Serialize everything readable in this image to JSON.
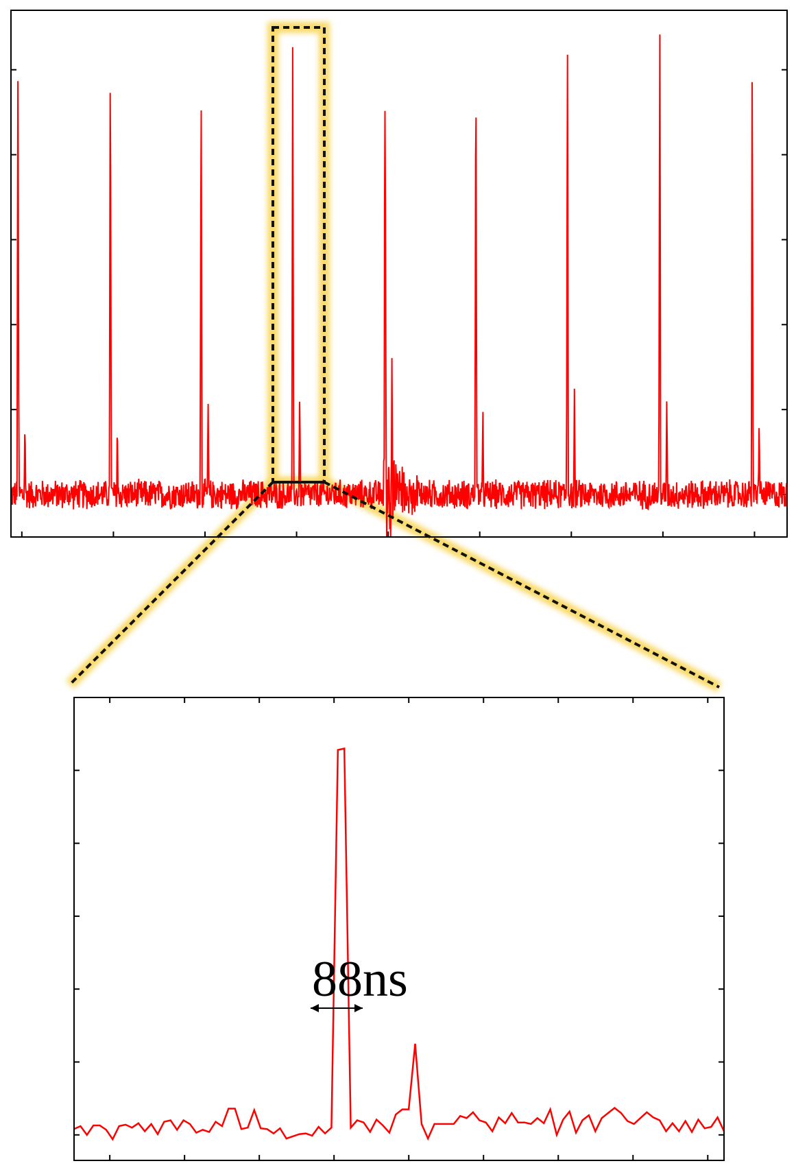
{
  "colors": {
    "trace": "#ff0000",
    "frame": "#000000",
    "zoom_box": "#111111",
    "glow": "#f5c518"
  },
  "annotation": {
    "label": "88ns"
  },
  "chart_data": [
    {
      "type": "line",
      "title": "",
      "xlabel": "",
      "ylabel": "",
      "xlim": [
        0,
        1000
      ],
      "ylim": [
        -0.5,
        5.7
      ],
      "grid": false,
      "series": [
        {
          "baseline": 0,
          "noise_amplitude": 0.12,
          "pulses": [
            {
              "x": 9,
              "main": 5.3,
              "echo": 0.9
            },
            {
              "x": 128,
              "main": 5.35,
              "echo": 0.9
            },
            {
              "x": 245,
              "main": 5.05,
              "echo": 1.1
            },
            {
              "x": 363,
              "main": 5.35,
              "echo": 1.25
            },
            {
              "x": 482,
              "main": 5.2,
              "echo": 1.6
            },
            {
              "x": 599,
              "main": 5.35,
              "echo": 1.1
            },
            {
              "x": 717,
              "main": 5.45,
              "echo": 1.3
            },
            {
              "x": 836,
              "main": 5.5,
              "echo": 1.2
            },
            {
              "x": 955,
              "main": 4.95,
              "echo": 0.9
            }
          ]
        }
      ]
    },
    {
      "type": "line",
      "title": "",
      "xlabel": "",
      "ylabel": "",
      "xlim": [
        0,
        100
      ],
      "ylim": [
        -0.35,
        6.0
      ],
      "grid": false,
      "series": [
        {
          "values": [
            0.08,
            0.12,
            0.0,
            0.13,
            0.13,
            0.07,
            -0.06,
            0.12,
            0.14,
            0.1,
            0.16,
            0.05,
            0.15,
            0.01,
            0.18,
            0.2,
            0.07,
            0.2,
            0.15,
            0.03,
            0.07,
            0.04,
            0.18,
            0.12,
            0.36,
            0.36,
            0.08,
            0.1,
            0.34,
            0.09,
            0.08,
            0.02,
            0.09,
            -0.05,
            -0.02,
            0.01,
            0.02,
            -0.01,
            0.11,
            0.02,
            0.1,
            5.28,
            5.3,
            0.1,
            0.2,
            0.17,
            0.04,
            0.21,
            0.13,
            0.03,
            0.28,
            0.35,
            0.35,
            1.25,
            0.15,
            -0.05,
            0.15,
            0.15,
            0.15,
            0.15,
            0.26,
            0.23,
            0.31,
            0.2,
            0.17,
            0.05,
            0.24,
            0.16,
            0.3,
            0.17,
            0.17,
            0.15,
            0.23,
            0.16,
            0.35,
            0.0,
            0.21,
            0.32,
            0.03,
            0.2,
            0.27,
            0.05,
            0.23,
            0.3,
            0.37,
            0.3,
            0.19,
            0.15,
            0.23,
            0.31,
            0.24,
            0.2,
            0.05,
            0.16,
            0.05,
            0.19,
            0.04,
            0.21,
            0.09,
            0.11,
            0.24,
            0.05
          ]
        }
      ]
    }
  ]
}
